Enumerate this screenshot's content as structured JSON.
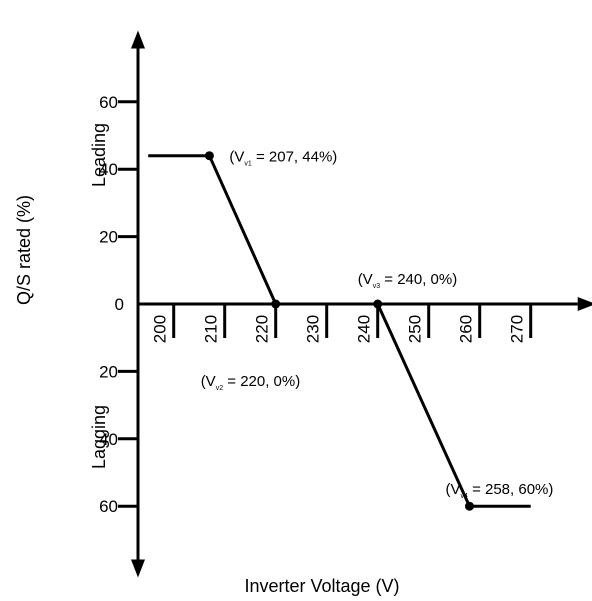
{
  "chart_data": {
    "type": "line",
    "xlabel": "Inverter Voltage (V)",
    "ylabel": "Q/S rated (%)",
    "y_region_labels": {
      "upper": "Leading",
      "lower": "Lagging"
    },
    "xlim": [
      193,
      280
    ],
    "ylim": [
      -77,
      77
    ],
    "x_ticks": [
      200,
      210,
      220,
      230,
      240,
      250,
      260,
      270
    ],
    "x_tick_labels": [
      "200",
      "210",
      "220",
      "230",
      "240",
      "250",
      "260",
      "270"
    ],
    "y_ticks": [
      60,
      40,
      20,
      0,
      -20,
      -40,
      -60
    ],
    "y_tick_labels": [
      "60",
      "40",
      "20",
      "0",
      "20",
      "40",
      "60"
    ],
    "series": [
      {
        "color": "#000000",
        "points": [
          [
            195,
            44
          ],
          [
            207,
            44
          ],
          [
            220,
            0
          ],
          [
            240,
            0
          ],
          [
            258,
            -60
          ],
          [
            270,
            -60
          ]
        ]
      }
    ],
    "markers": [
      [
        207,
        44
      ],
      [
        220,
        0
      ],
      [
        240,
        0
      ],
      [
        258,
        -60
      ]
    ],
    "annotations": [
      {
        "pre": "(V",
        "sub": "v1",
        "post": " = 207, 44%)",
        "x": 207,
        "y": 44
      },
      {
        "pre": "(V",
        "sub": "v2",
        "post": " = 220, 0%)",
        "x": 220,
        "y": 0
      },
      {
        "pre": "(V",
        "sub": "v3",
        "post": " = 240, 0%)",
        "x": 240,
        "y": 0
      },
      {
        "pre": "(V",
        "sub": "v4",
        "post": " = 258, 60%)",
        "x": 258,
        "y": -60
      }
    ],
    "grid": false,
    "legend": "none"
  }
}
